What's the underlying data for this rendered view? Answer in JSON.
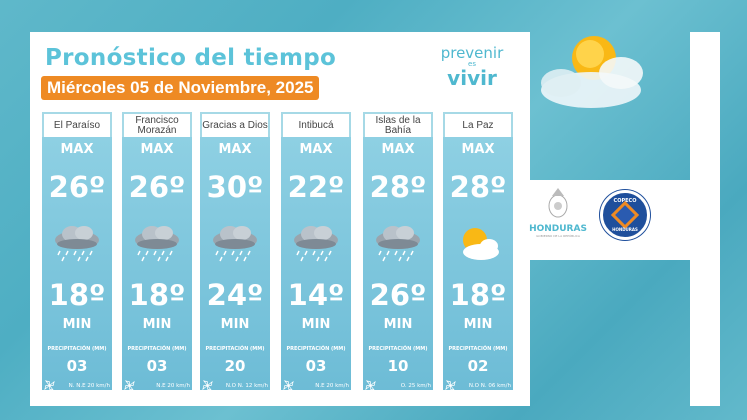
{
  "header": {
    "title": "Pronóstico del tiempo",
    "date": "Miércoles 05 de Noviembre, 2025"
  },
  "logo": {
    "line1": "prevenir",
    "line2": "es",
    "line3": "vivir"
  },
  "labels": {
    "max": "MAX",
    "min": "MIN",
    "precip": "PRECIPITACIÓN (MM)"
  },
  "cards": [
    {
      "name": "El Paraíso",
      "max": "26º",
      "min": "18º",
      "precip": "03",
      "wind": "N. N.E 20 km/h",
      "icon": "rain-cloud-icon"
    },
    {
      "name": "Francisco Morazán",
      "max": "26º",
      "min": "18º",
      "precip": "03",
      "wind": "N.E 20 km/h",
      "icon": "rain-cloud-icon"
    },
    {
      "name": "Gracias a Dios",
      "max": "30º",
      "min": "24º",
      "precip": "20",
      "wind": "N.O N. 12 km/h",
      "icon": "rain-cloud-icon"
    },
    {
      "name": "Intibucá",
      "max": "22º",
      "min": "14º",
      "precip": "03",
      "wind": "N.E 20 km/h",
      "icon": "rain-cloud-icon"
    },
    {
      "name": "Islas de la Bahía",
      "max": "28º",
      "min": "26º",
      "precip": "10",
      "wind": "O. 25 km/h",
      "icon": "rain-cloud-icon"
    },
    {
      "name": "La Paz",
      "max": "28º",
      "min": "18º",
      "precip": "02",
      "wind": "N.O N. 06 km/h",
      "icon": "sun-cloud-icon"
    }
  ],
  "sponsors": {
    "honduras": "HONDURAS",
    "honduras_sub": "GOBIERNO DE LA REPÚBLICA",
    "copeco_top": "COPECO",
    "copeco_bottom": "HONDURAS"
  },
  "colors": {
    "accent": "#ee8a24",
    "title": "#5cc3d9",
    "card": "#7fc6dd",
    "copeco": "#1f4f9c"
  }
}
